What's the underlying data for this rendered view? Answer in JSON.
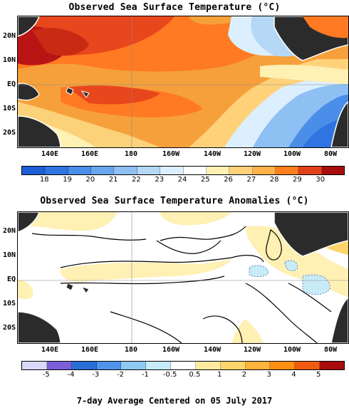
{
  "sst": {
    "title": "Observed Sea Surface Temperature (°C)",
    "lat_labels": [
      "20N",
      "10N",
      "EQ",
      "10S",
      "20S"
    ],
    "lon_labels": [
      "140E",
      "160E",
      "180",
      "160W",
      "140W",
      "120W",
      "100W",
      "80W"
    ],
    "colorbar_ticks": [
      "18",
      "19",
      "20",
      "21",
      "22",
      "23",
      "24",
      "25",
      "26",
      "27",
      "28",
      "29",
      "30"
    ],
    "colorbar_colors": [
      "#1f5fd6",
      "#2f74e0",
      "#4a8ee9",
      "#6aa6ef",
      "#8ec0f3",
      "#b4d8f6",
      "#dcefff",
      "#ffffff",
      "#fff0b4",
      "#ffd27a",
      "#ffb24a",
      "#ff7f1c",
      "#e0401a",
      "#a80e0e"
    ]
  },
  "anomaly": {
    "title": "Observed Sea Surface Temperature Anomalies (°C)",
    "lat_labels": [
      "20N",
      "10N",
      "EQ",
      "10S",
      "20S"
    ],
    "lon_labels": [
      "140E",
      "160E",
      "180",
      "160W",
      "140W",
      "120W",
      "100W",
      "80W"
    ],
    "colorbar_ticks": [
      "-5",
      "-4",
      "-3",
      "-2",
      "-1",
      "-0.5",
      "0.5",
      "1",
      "2",
      "3",
      "4",
      "5"
    ],
    "colorbar_colors": [
      "#d9d9f7",
      "#7a5fd9",
      "#2a6ed8",
      "#4f93ea",
      "#8ec9f2",
      "#c8ecf7",
      "#ffffff",
      "#ffeaa0",
      "#ffd46a",
      "#ffb43c",
      "#ff9012",
      "#f25a10",
      "#a90c0c"
    ]
  },
  "footer": "7-day Average Centered on 05 July 2017",
  "colors": {
    "land": "#2b2b2b",
    "coast": "#ffffff"
  }
}
